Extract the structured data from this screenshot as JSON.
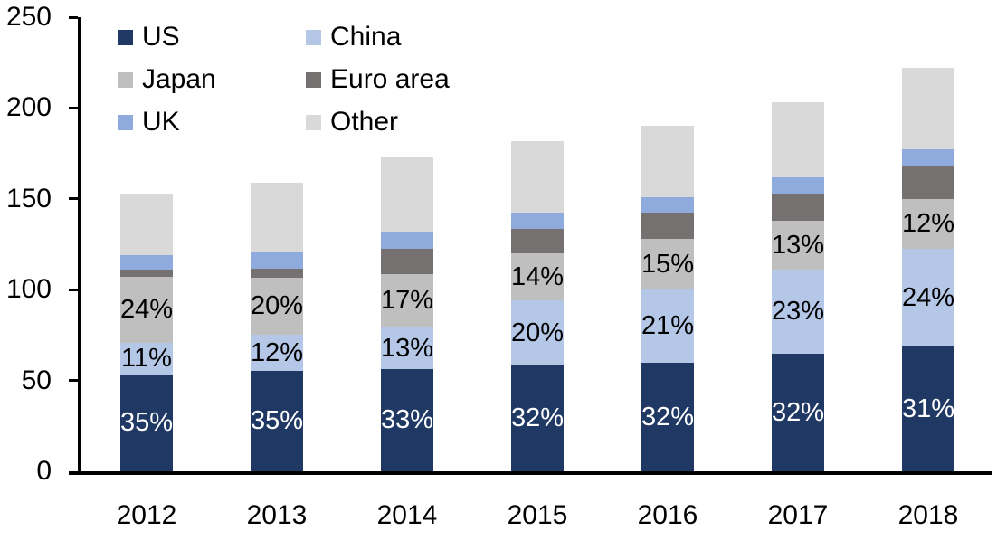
{
  "chart_data": {
    "type": "bar",
    "stacked": true,
    "title": "",
    "xlabel": "",
    "ylabel": "",
    "categories": [
      "2012",
      "2013",
      "2014",
      "2015",
      "2016",
      "2017",
      "2018"
    ],
    "series": [
      {
        "name": "US",
        "color": "#1f3864",
        "label_color": "#ffffff",
        "values": [
          53.5,
          55.5,
          56.5,
          58.5,
          60.0,
          64.5,
          68.5
        ],
        "labels": [
          "35%",
          "35%",
          "33%",
          "32%",
          "32%",
          "32%",
          "31%"
        ]
      },
      {
        "name": "China",
        "color": "#b4c7e7",
        "label_color": "#000000",
        "values": [
          17.0,
          19.5,
          22.5,
          35.5,
          40.0,
          46.5,
          54.0
        ],
        "labels": [
          "11%",
          "12%",
          "13%",
          "20%",
          "21%",
          "23%",
          "24%"
        ]
      },
      {
        "name": "Japan",
        "color": "#bfbfbf",
        "label_color": "#000000",
        "values": [
          36.5,
          31.5,
          29.5,
          26.0,
          28.0,
          27.0,
          27.5
        ],
        "labels": [
          "24%",
          "20%",
          "17%",
          "14%",
          "15%",
          "13%",
          "12%"
        ]
      },
      {
        "name": "Euro area",
        "color": "#767171",
        "label_color": "#000000",
        "values": [
          4.0,
          5.0,
          14.0,
          13.5,
          14.5,
          15.0,
          18.5
        ],
        "labels": [
          "",
          "",
          "",
          "",
          "",
          "",
          ""
        ]
      },
      {
        "name": "UK",
        "color": "#8faadc",
        "label_color": "#000000",
        "values": [
          8.0,
          9.5,
          9.5,
          9.0,
          8.5,
          9.0,
          9.0
        ],
        "labels": [
          "",
          "",
          "",
          "",
          "",
          "",
          ""
        ]
      },
      {
        "name": "Other",
        "color": "#d9d9d9",
        "label_color": "#000000",
        "values": [
          34.0,
          38.0,
          41.0,
          39.5,
          39.0,
          41.0,
          44.5
        ],
        "labels": [
          "",
          "",
          "",
          "",
          "",
          "",
          ""
        ]
      }
    ],
    "totals": [
      153,
      159,
      173,
      182,
      190,
      203,
      222
    ],
    "ylim": [
      0,
      250
    ],
    "yticks": [
      0,
      50,
      100,
      150,
      200,
      250
    ],
    "ytick_labels": [
      "0",
      "50",
      "100",
      "150",
      "200",
      "250"
    ],
    "grid": false,
    "legend_position": "top-left",
    "legend_columns": 2,
    "legend_order": [
      "US",
      "China",
      "Japan",
      "Euro area",
      "UK",
      "Other"
    ],
    "axis_color": "#000000",
    "text_color": "#000000",
    "background_color": "#ffffff"
  }
}
